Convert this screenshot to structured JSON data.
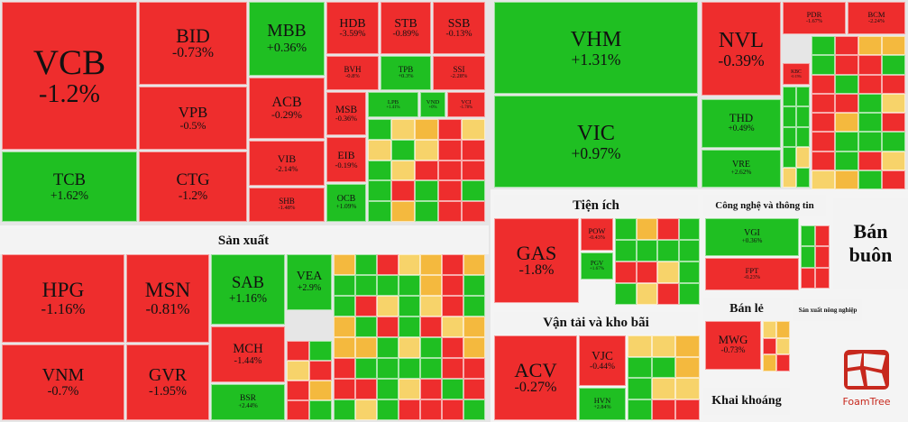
{
  "tiles": [
    {
      "ticker": "VCB",
      "change": "-1.2%"
    },
    {
      "ticker": "TCB",
      "change": "+1.62%"
    },
    {
      "ticker": "BID",
      "change": "-0.73%"
    },
    {
      "ticker": "VPB",
      "change": "-0.5%"
    },
    {
      "ticker": "CTG",
      "change": "-1.2%"
    },
    {
      "ticker": "MBB",
      "change": "+0.36%"
    },
    {
      "ticker": "ACB",
      "change": "-0.29%"
    },
    {
      "ticker": "VIB",
      "change": "-2.14%"
    },
    {
      "ticker": "SHB",
      "change": "-1.48%"
    },
    {
      "ticker": "HDB",
      "change": "-3.59%"
    },
    {
      "ticker": "STB",
      "change": "-0.89%"
    },
    {
      "ticker": "SSB",
      "change": "-0.13%"
    },
    {
      "ticker": "BVH",
      "change": "-0.8%"
    },
    {
      "ticker": "TPB",
      "change": "+0.3%"
    },
    {
      "ticker": "SSI",
      "change": "-2.28%"
    },
    {
      "ticker": "MSB",
      "change": "-0.36%"
    },
    {
      "ticker": "LPB",
      "change": "+1.41%"
    },
    {
      "ticker": "VND",
      "change": "+0%"
    },
    {
      "ticker": "VCI",
      "change": "-1.78%"
    },
    {
      "ticker": "EIB",
      "change": "-0.19%"
    },
    {
      "ticker": "OCB",
      "change": "+1.09%"
    },
    {
      "ticker": "HPG",
      "change": "-1.16%"
    },
    {
      "ticker": "VNM",
      "change": "-0.7%"
    },
    {
      "ticker": "MSN",
      "change": "-0.81%"
    },
    {
      "ticker": "GVR",
      "change": "-1.95%"
    },
    {
      "ticker": "SAB",
      "change": "+1.16%"
    },
    {
      "ticker": "MCH",
      "change": "-1.44%"
    },
    {
      "ticker": "BSR",
      "change": "+2.44%"
    },
    {
      "ticker": "VEA",
      "change": "+2.9%"
    },
    {
      "ticker": "VHM",
      "change": "+1.31%"
    },
    {
      "ticker": "VIC",
      "change": "+0.97%"
    },
    {
      "ticker": "NVL",
      "change": "-0.39%"
    },
    {
      "ticker": "THD",
      "change": "+0.49%"
    },
    {
      "ticker": "VRE",
      "change": "+2.62%"
    },
    {
      "ticker": "PDR",
      "change": "-1.67%"
    },
    {
      "ticker": "BCM",
      "change": "-2.24%"
    },
    {
      "ticker": "KBC",
      "change": "-0.15%"
    },
    {
      "ticker": "GAS",
      "change": "-1.8%"
    },
    {
      "ticker": "POW",
      "change": "-0.43%"
    },
    {
      "ticker": "PGV",
      "change": "+1.67%"
    },
    {
      "ticker": "ACV",
      "change": "-0.27%"
    },
    {
      "ticker": "VJC",
      "change": "-0.44%"
    },
    {
      "ticker": "HVN",
      "change": "+2.84%"
    },
    {
      "ticker": "VGI",
      "change": "+0.36%"
    },
    {
      "ticker": "FPT",
      "change": "-0.23%"
    },
    {
      "ticker": "MWG",
      "change": "-0.73%"
    }
  ],
  "sectors": [
    "Sản xuất",
    "Tiện ích",
    "Vận tải và kho bãi",
    "Công nghệ và thông tin",
    "Bán buôn",
    "Bán lẻ",
    "Sản xuất nông nghiệp",
    "Khai khoáng"
  ],
  "brand": "FoamTree"
}
